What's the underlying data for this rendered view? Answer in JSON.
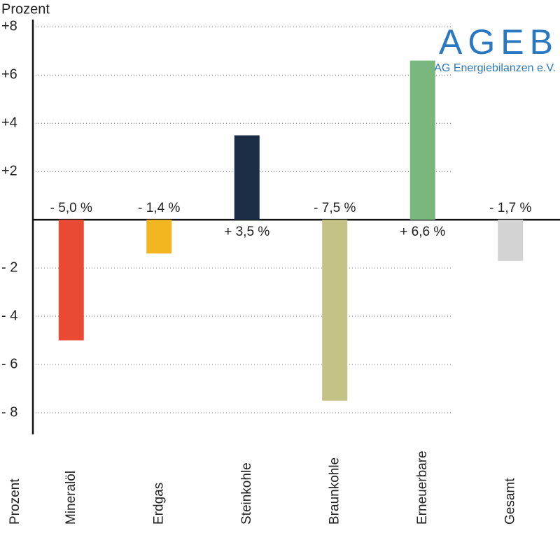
{
  "chart_data": {
    "type": "bar",
    "title": "Prozent",
    "x_label": "Prozent",
    "logo": "AGEB",
    "logo_subtitle": "AG Energiebilanzen e.V.",
    "categories": [
      "Mineralöl",
      "Erdgas",
      "Steinkohle",
      "Braunkohle",
      "Erneuerbare",
      "Gesamt"
    ],
    "values": [
      -5.0,
      -1.4,
      3.5,
      -7.5,
      6.6,
      -1.7
    ],
    "value_labels": [
      "- 5,0 %",
      "- 1,4 %",
      "+ 3,5 %",
      "- 7,5 %",
      "+ 6,6 %",
      "- 1,7 %"
    ],
    "colors": [
      "#e84a33",
      "#f2b620",
      "#1c2e45",
      "#c4c287",
      "#79b77e",
      "#d3d3d3"
    ],
    "ylim": [
      -8.9,
      8.3
    ],
    "yticks": [
      {
        "value": 8,
        "label": "+8"
      },
      {
        "value": 6,
        "label": "+6"
      },
      {
        "value": 4,
        "label": "+4"
      },
      {
        "value": 2,
        "label": "+2"
      },
      {
        "value": -2,
        "label": "- 2"
      },
      {
        "value": -4,
        "label": "- 4"
      },
      {
        "value": -6,
        "label": "- 6"
      },
      {
        "value": -8,
        "label": "- 8"
      }
    ],
    "grid": true
  }
}
